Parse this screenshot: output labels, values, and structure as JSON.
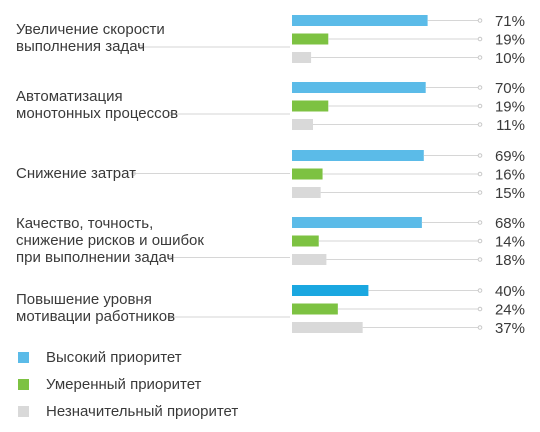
{
  "chart_data": {
    "type": "bar",
    "orientation": "horizontal",
    "categories": [
      "Увеличение скорости\nвыполнения задач",
      "Автоматизация\nмонотонных процессов",
      "Снижение затрат",
      "Качество, точность,\nснижение рисков и ошибок\nпри выполнении задач",
      "Повышение уровня\nмотивации работников"
    ],
    "series": [
      {
        "name": "Высокий приоритет",
        "color": "#5bbbe8",
        "values": [
          71,
          70,
          69,
          68,
          40
        ],
        "value_labels": [
          "71%",
          "70%",
          "69%",
          "68%",
          "40%"
        ]
      },
      {
        "name": "Умеренный приоритет",
        "color": "#7dc242",
        "values": [
          19,
          19,
          16,
          14,
          24
        ],
        "value_labels": [
          "19%",
          "19%",
          "16%",
          "14%",
          "24%"
        ]
      },
      {
        "name": "Незначительный приоритет",
        "color": "#d9d9d9",
        "values": [
          10,
          11,
          15,
          18,
          37
        ],
        "value_labels": [
          "10%",
          "11%",
          "15%",
          "18%",
          "37%"
        ]
      }
    ],
    "highlight_color": "#1aa7e0",
    "xlim": [
      0,
      100
    ],
    "grid": false,
    "legend_position": "bottom-left"
  }
}
